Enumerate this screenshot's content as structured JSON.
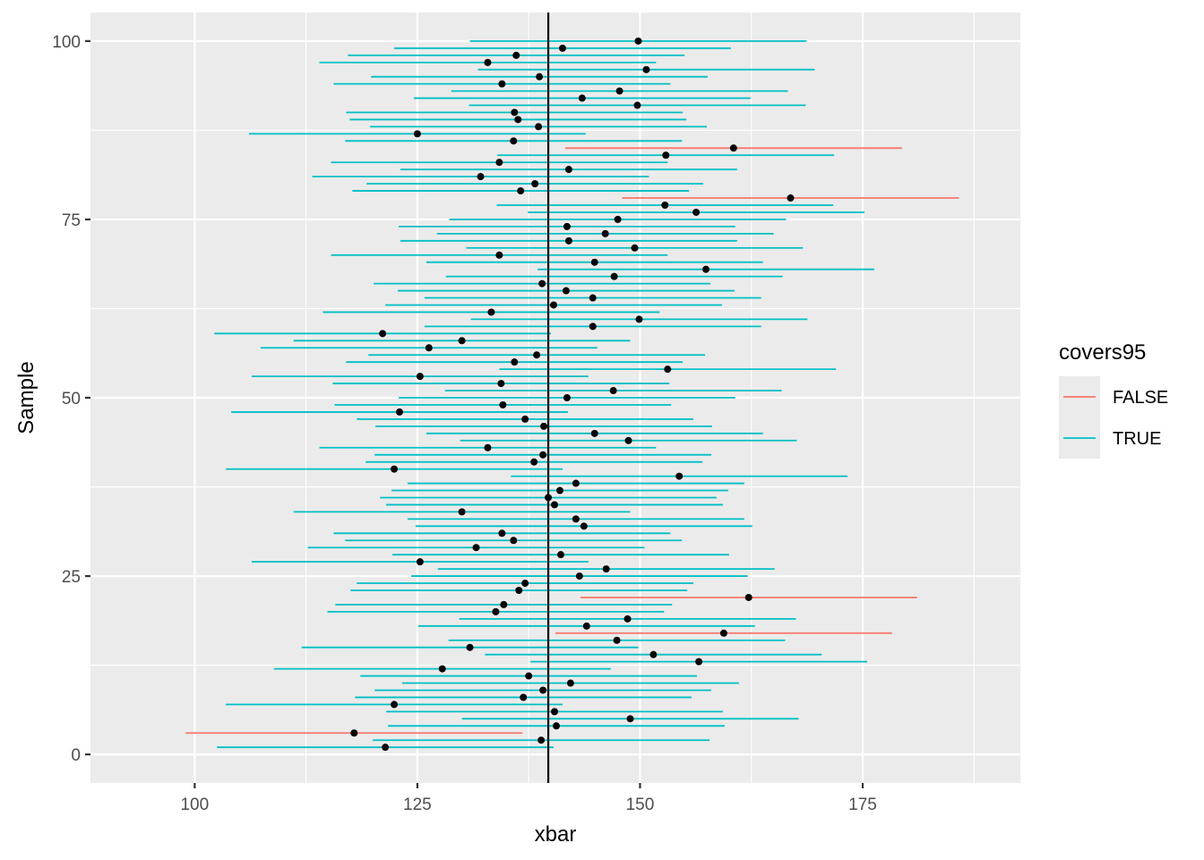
{
  "chart_data": {
    "type": "errorbar",
    "xlabel": "xbar",
    "ylabel": "Sample",
    "xlim": [
      88.3,
      192.7
    ],
    "ylim": [
      -4,
      104
    ],
    "x_ticks": [
      100,
      125,
      150,
      175
    ],
    "x_tick_labels": [
      "100",
      "125",
      "150",
      "175"
    ],
    "y_ticks": [
      0,
      25,
      50,
      75,
      100
    ],
    "y_tick_labels": [
      "0",
      "25",
      "50",
      "75",
      "100"
    ],
    "reference_line": 139.7,
    "half_width": 18.9,
    "grid": true,
    "panel_background": "#ebebeb",
    "legend": {
      "title": "covers95",
      "position": "right",
      "entries": [
        {
          "label": "FALSE",
          "color": "#f8766d"
        },
        {
          "label": "TRUE",
          "color": "#00bfc4"
        }
      ]
    },
    "samples": [
      1,
      2,
      3,
      4,
      5,
      6,
      7,
      8,
      9,
      10,
      11,
      12,
      13,
      14,
      15,
      16,
      17,
      18,
      19,
      20,
      21,
      22,
      23,
      24,
      25,
      26,
      27,
      28,
      29,
      30,
      31,
      32,
      33,
      34,
      35,
      36,
      37,
      38,
      39,
      40,
      41,
      42,
      43,
      44,
      45,
      46,
      47,
      48,
      49,
      50,
      51,
      52,
      53,
      54,
      55,
      56,
      57,
      58,
      59,
      60,
      61,
      62,
      63,
      64,
      65,
      66,
      67,
      68,
      69,
      70,
      71,
      72,
      73,
      74,
      75,
      76,
      77,
      78,
      79,
      80,
      81,
      82,
      83,
      84,
      85,
      86,
      87,
      88,
      89,
      90,
      91,
      92,
      93,
      94,
      95,
      96,
      97,
      98,
      99,
      100
    ],
    "xbar": [
      121.4,
      138.9,
      117.9,
      140.6,
      148.9,
      140.4,
      122.4,
      136.9,
      139.1,
      142.2,
      137.5,
      127.8,
      156.6,
      151.5,
      130.9,
      147.4,
      159.4,
      144.0,
      148.6,
      133.8,
      134.7,
      162.2,
      136.4,
      137.1,
      143.2,
      146.2,
      125.3,
      141.1,
      131.6,
      135.8,
      134.5,
      143.7,
      142.8,
      130.0,
      140.4,
      139.7,
      141.0,
      142.8,
      154.4,
      122.4,
      138.1,
      139.1,
      132.9,
      148.7,
      144.9,
      139.2,
      137.1,
      123.0,
      134.6,
      141.8,
      147.0,
      134.4,
      125.3,
      153.1,
      135.9,
      138.4,
      126.3,
      130.0,
      121.1,
      144.7,
      149.9,
      133.3,
      140.3,
      144.7,
      141.7,
      139.0,
      147.1,
      157.4,
      144.9,
      134.2,
      149.4,
      142.0,
      146.1,
      141.8,
      147.5,
      156.3,
      152.8,
      166.9,
      136.6,
      138.2,
      132.1,
      142.0,
      134.2,
      152.9,
      160.5,
      135.8,
      125.0,
      138.6,
      136.3,
      135.9,
      149.7,
      143.5,
      147.7,
      134.5,
      138.7,
      150.7,
      132.9,
      136.1,
      141.3,
      149.8
    ],
    "covers95": [
      true,
      true,
      false,
      true,
      true,
      true,
      true,
      true,
      true,
      true,
      true,
      true,
      true,
      true,
      true,
      true,
      false,
      true,
      true,
      true,
      true,
      false,
      true,
      true,
      true,
      true,
      true,
      true,
      true,
      true,
      true,
      true,
      true,
      true,
      true,
      true,
      true,
      true,
      true,
      true,
      true,
      true,
      true,
      true,
      true,
      true,
      true,
      true,
      true,
      true,
      true,
      true,
      true,
      true,
      true,
      true,
      true,
      true,
      true,
      true,
      true,
      true,
      true,
      true,
      true,
      true,
      true,
      true,
      true,
      true,
      true,
      true,
      true,
      true,
      true,
      true,
      true,
      false,
      true,
      true,
      true,
      true,
      true,
      true,
      false,
      true,
      true,
      true,
      true,
      true,
      true,
      true,
      true,
      true,
      true,
      true,
      true,
      true,
      true,
      true
    ]
  }
}
